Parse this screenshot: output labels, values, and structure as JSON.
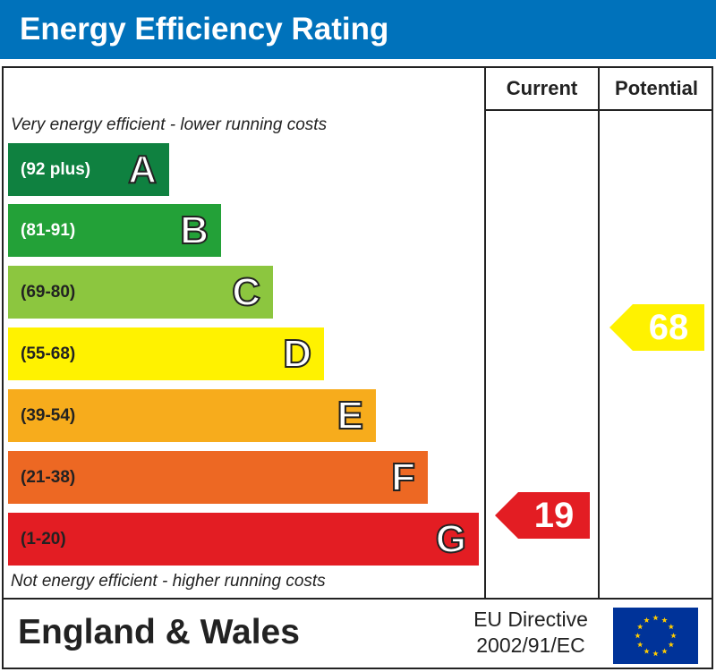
{
  "title": "Energy Efficiency Rating",
  "columns": {
    "current": "Current",
    "potential": "Potential"
  },
  "top_note": "Very energy efficient - lower running costs",
  "bottom_note": "Not energy efficient - higher running costs",
  "bands": [
    {
      "letter": "A",
      "range": "(92 plus)",
      "color": "#0f8140",
      "text_color": "#ffffff"
    },
    {
      "letter": "B",
      "range": "(81-91)",
      "color": "#23a138",
      "text_color": "#ffffff"
    },
    {
      "letter": "C",
      "range": "(69-80)",
      "color": "#8cc63f",
      "text_color": "#222222"
    },
    {
      "letter": "D",
      "range": "(55-68)",
      "color": "#fff200",
      "text_color": "#222222"
    },
    {
      "letter": "E",
      "range": "(39-54)",
      "color": "#f7ac1c",
      "text_color": "#222222"
    },
    {
      "letter": "F",
      "range": "(21-38)",
      "color": "#ed6823",
      "text_color": "#222222"
    },
    {
      "letter": "G",
      "range": "(1-20)",
      "color": "#e31d23",
      "text_color": "#222222"
    }
  ],
  "current": {
    "value": "19",
    "band": "G",
    "color": "#e31d23"
  },
  "potential": {
    "value": "68",
    "band": "D",
    "color": "#fff200"
  },
  "footer": {
    "region": "England & Wales",
    "directive_line1": "EU Directive",
    "directive_line2": "2002/91/EC"
  },
  "icons": {
    "flag": "eu-flag-icon"
  }
}
